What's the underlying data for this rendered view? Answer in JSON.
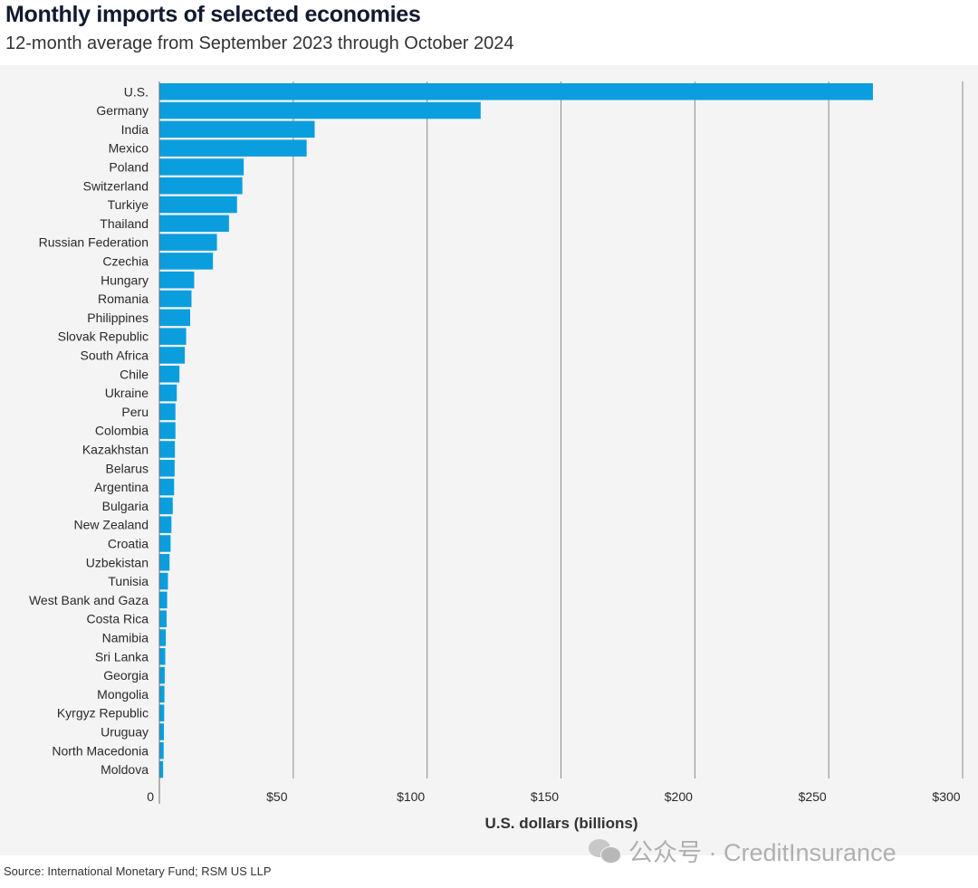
{
  "header": {
    "title": "Monthly imports of selected economies",
    "subtitle": "12-month average from September 2023 through October 2024"
  },
  "footer": {
    "source": "Source: International Monetary Fund; RSM US LLP",
    "watermark": "公众号 · CreditInsurance"
  },
  "colors": {
    "bar": "#0a9ede",
    "grid": "#8a8a8a",
    "panel": "#f4f4f4"
  },
  "chart_data": {
    "type": "bar",
    "orientation": "horizontal",
    "title": "Monthly imports of selected economies",
    "subtitle": "12-month average from September 2023 through October 2024",
    "xlabel": "U.S. dollars (billions)",
    "ylabel": "",
    "xlim": [
      0,
      300
    ],
    "grid": true,
    "x_ticks": [
      0,
      50,
      100,
      150,
      200,
      250,
      300
    ],
    "x_tick_labels": [
      "0",
      "$50",
      "$100",
      "$150",
      "$200",
      "$250",
      "$300"
    ],
    "categories": [
      "U.S.",
      "Germany",
      "India",
      "Mexico",
      "Poland",
      "Switzerland",
      "Turkiye",
      "Thailand",
      "Russian Federation",
      "Czechia",
      "Hungary",
      "Romania",
      "Philippines",
      "Slovak Republic",
      "South Africa",
      "Chile",
      "Ukraine",
      "Peru",
      "Colombia",
      "Kazakhstan",
      "Belarus",
      "Argentina",
      "Bulgaria",
      "New Zealand",
      "Croatia",
      "Uzbekistan",
      "Tunisia",
      "West Bank and Gaza",
      "Costa Rica",
      "Namibia",
      "Sri Lanka",
      "Georgia",
      "Mongolia",
      "Kyrgyz Republic",
      "Uruguay",
      "North Macedonia",
      "Moldova"
    ],
    "values": [
      266.5,
      120,
      58,
      55,
      31.5,
      31,
      29,
      26,
      21.5,
      20,
      13,
      12,
      11.5,
      10,
      9.5,
      7.5,
      6.5,
      6,
      6,
      5.8,
      5.7,
      5.5,
      5,
      4.5,
      4.2,
      3.8,
      3.2,
      2.9,
      2.7,
      2.4,
      2.2,
      2,
      1.9,
      1.8,
      1.7,
      1.6,
      1.4
    ]
  }
}
